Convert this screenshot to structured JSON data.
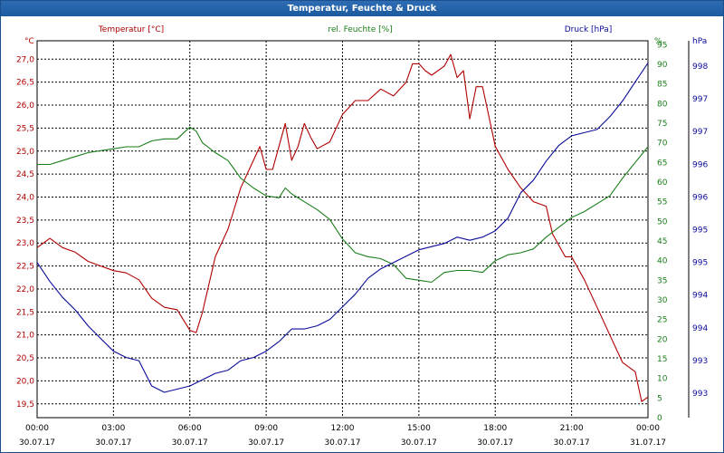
{
  "window": {
    "title": "Temperatur, Feuchte & Druck"
  },
  "chart_data": {
    "type": "line",
    "title": "Temperatur, Feuchte & Druck",
    "grid": true,
    "x": {
      "range": [
        "00:00 30.07.17",
        "00:00 31.07.17"
      ],
      "ticks": [
        {
          "time": "00:00",
          "date": "30.07.17"
        },
        {
          "time": "03:00",
          "date": "30.07.17"
        },
        {
          "time": "06:00",
          "date": "30.07.17"
        },
        {
          "time": "09:00",
          "date": "30.07.17"
        },
        {
          "time": "12:00",
          "date": "30.07.17"
        },
        {
          "time": "15:00",
          "date": "30.07.17"
        },
        {
          "time": "18:00",
          "date": "30.07.17"
        },
        {
          "time": "21:00",
          "date": "30.07.17"
        },
        {
          "time": "00:00",
          "date": "31.07.17"
        }
      ]
    },
    "axes": {
      "temperature": {
        "unit": "°C",
        "ylim": [
          19.2,
          27.4
        ],
        "ticks": [
          "27,0",
          "26,5",
          "26,0",
          "25,5",
          "25,0",
          "24,5",
          "24,0",
          "23,5",
          "23,0",
          "22,5",
          "22,0",
          "21,5",
          "21,0",
          "20,5",
          "20,0",
          "19,5"
        ]
      },
      "humidity": {
        "unit": "%",
        "ylim": [
          0,
          96
        ],
        "ticks": [
          "95",
          "90",
          "85",
          "80",
          "75",
          "70",
          "65",
          "60",
          "55",
          "50",
          "45",
          "40",
          "35",
          "30",
          "25",
          "20",
          "15",
          "10",
          "5",
          "0"
        ]
      },
      "pressure": {
        "unit": "hPa",
        "ylim": [
          992.6,
          998.55
        ],
        "ticks": [
          "998",
          "997",
          "997",
          "996",
          "996",
          "995",
          "995",
          "994",
          "994",
          "993",
          "993"
        ]
      }
    },
    "series": [
      {
        "name": "Temperatur [°C]",
        "axis": "temperature",
        "color": "#b00000",
        "points": [
          [
            "00:00",
            22.9
          ],
          [
            "00:30",
            23.1
          ],
          [
            "01:00",
            22.9
          ],
          [
            "01:30",
            22.8
          ],
          [
            "02:00",
            22.6
          ],
          [
            "02:30",
            22.5
          ],
          [
            "03:00",
            22.4
          ],
          [
            "03:30",
            22.35
          ],
          [
            "04:00",
            22.2
          ],
          [
            "04:30",
            21.8
          ],
          [
            "05:00",
            21.6
          ],
          [
            "05:30",
            21.55
          ],
          [
            "06:00",
            21.1
          ],
          [
            "06:15",
            21.05
          ],
          [
            "06:30",
            21.5
          ],
          [
            "07:00",
            22.7
          ],
          [
            "07:30",
            23.3
          ],
          [
            "08:00",
            24.2
          ],
          [
            "08:30",
            24.8
          ],
          [
            "08:45",
            25.1
          ],
          [
            "09:00",
            24.6
          ],
          [
            "09:15",
            24.6
          ],
          [
            "09:30",
            25.1
          ],
          [
            "09:45",
            25.6
          ],
          [
            "10:00",
            24.8
          ],
          [
            "10:15",
            25.1
          ],
          [
            "10:30",
            25.6
          ],
          [
            "10:45",
            25.3
          ],
          [
            "11:00",
            25.05
          ],
          [
            "11:30",
            25.2
          ],
          [
            "12:00",
            25.8
          ],
          [
            "12:30",
            26.1
          ],
          [
            "13:00",
            26.1
          ],
          [
            "13:30",
            26.35
          ],
          [
            "14:00",
            26.2
          ],
          [
            "14:30",
            26.5
          ],
          [
            "14:45",
            26.9
          ],
          [
            "15:00",
            26.9
          ],
          [
            "15:15",
            26.75
          ],
          [
            "15:30",
            26.65
          ],
          [
            "16:00",
            26.85
          ],
          [
            "16:15",
            27.1
          ],
          [
            "16:30",
            26.6
          ],
          [
            "16:45",
            26.75
          ],
          [
            "17:00",
            25.7
          ],
          [
            "17:15",
            26.4
          ],
          [
            "17:30",
            26.4
          ],
          [
            "18:00",
            25.1
          ],
          [
            "18:30",
            24.6
          ],
          [
            "19:00",
            24.2
          ],
          [
            "19:30",
            23.9
          ],
          [
            "20:00",
            23.8
          ],
          [
            "20:15",
            23.2
          ],
          [
            "20:45",
            22.7
          ],
          [
            "21:00",
            22.7
          ],
          [
            "21:30",
            22.2
          ],
          [
            "22:00",
            21.6
          ],
          [
            "22:30",
            21.0
          ],
          [
            "23:00",
            20.4
          ],
          [
            "23:30",
            20.2
          ],
          [
            "23:45",
            19.55
          ],
          [
            "24:00",
            19.65
          ]
        ]
      },
      {
        "name": "rel. Feuchte [%]",
        "axis": "humidity",
        "color": "#1a7d1a",
        "points": [
          [
            "00:00",
            64.5
          ],
          [
            "00:30",
            64.5
          ],
          [
            "01:00",
            65.5
          ],
          [
            "01:30",
            66.5
          ],
          [
            "02:00",
            67.5
          ],
          [
            "02:30",
            68
          ],
          [
            "03:00",
            68.5
          ],
          [
            "03:30",
            69
          ],
          [
            "04:00",
            69
          ],
          [
            "04:30",
            70.5
          ],
          [
            "05:00",
            71
          ],
          [
            "05:30",
            71
          ],
          [
            "06:00",
            74
          ],
          [
            "06:15",
            73
          ],
          [
            "06:30",
            70
          ],
          [
            "07:00",
            67.5
          ],
          [
            "07:30",
            65.5
          ],
          [
            "08:00",
            61
          ],
          [
            "08:30",
            58.5
          ],
          [
            "09:00",
            56.5
          ],
          [
            "09:30",
            56
          ],
          [
            "09:45",
            58.5
          ],
          [
            "10:00",
            57
          ],
          [
            "10:30",
            55
          ],
          [
            "11:00",
            53
          ],
          [
            "11:30",
            50.5
          ],
          [
            "12:00",
            45.5
          ],
          [
            "12:30",
            42
          ],
          [
            "13:00",
            41
          ],
          [
            "13:30",
            40.5
          ],
          [
            "14:00",
            39
          ],
          [
            "14:30",
            35.5
          ],
          [
            "15:00",
            35
          ],
          [
            "15:30",
            34.5
          ],
          [
            "16:00",
            37
          ],
          [
            "16:30",
            37.5
          ],
          [
            "17:00",
            37.5
          ],
          [
            "17:30",
            37
          ],
          [
            "18:00",
            40
          ],
          [
            "18:30",
            41.5
          ],
          [
            "19:00",
            42
          ],
          [
            "19:30",
            43
          ],
          [
            "20:00",
            46
          ],
          [
            "20:30",
            48.5
          ],
          [
            "21:00",
            51
          ],
          [
            "21:30",
            52.5
          ],
          [
            "22:00",
            54.5
          ],
          [
            "22:30",
            56.5
          ],
          [
            "23:00",
            61
          ],
          [
            "23:30",
            65
          ],
          [
            "24:00",
            69
          ]
        ]
      },
      {
        "name": "Druck [hPa]",
        "axis": "pressure",
        "color": "#0b0b9b",
        "points": [
          [
            "00:00",
            995.05
          ],
          [
            "00:30",
            994.75
          ],
          [
            "01:00",
            994.5
          ],
          [
            "01:30",
            994.3
          ],
          [
            "02:00",
            994.05
          ],
          [
            "02:30",
            993.85
          ],
          [
            "03:00",
            993.65
          ],
          [
            "03:30",
            993.55
          ],
          [
            "04:00",
            993.5
          ],
          [
            "04:30",
            993.1
          ],
          [
            "05:00",
            993.0
          ],
          [
            "05:30",
            993.05
          ],
          [
            "06:00",
            993.1
          ],
          [
            "06:30",
            993.2
          ],
          [
            "07:00",
            993.3
          ],
          [
            "07:30",
            993.35
          ],
          [
            "08:00",
            993.5
          ],
          [
            "08:30",
            993.55
          ],
          [
            "09:00",
            993.65
          ],
          [
            "09:30",
            993.8
          ],
          [
            "10:00",
            994.0
          ],
          [
            "10:30",
            994.0
          ],
          [
            "11:00",
            994.05
          ],
          [
            "11:30",
            994.15
          ],
          [
            "12:00",
            994.35
          ],
          [
            "12:30",
            994.55
          ],
          [
            "13:00",
            994.8
          ],
          [
            "13:30",
            994.95
          ],
          [
            "14:00",
            995.05
          ],
          [
            "14:30",
            995.15
          ],
          [
            "15:00",
            995.25
          ],
          [
            "15:30",
            995.3
          ],
          [
            "16:00",
            995.35
          ],
          [
            "16:30",
            995.45
          ],
          [
            "17:00",
            995.4
          ],
          [
            "17:30",
            995.45
          ],
          [
            "18:00",
            995.55
          ],
          [
            "18:30",
            995.75
          ],
          [
            "19:00",
            996.15
          ],
          [
            "19:30",
            996.35
          ],
          [
            "20:00",
            996.65
          ],
          [
            "20:30",
            996.9
          ],
          [
            "21:00",
            997.05
          ],
          [
            "21:30",
            997.1
          ],
          [
            "22:00",
            997.15
          ],
          [
            "22:30",
            997.35
          ],
          [
            "23:00",
            997.6
          ],
          [
            "23:30",
            997.9
          ],
          [
            "24:00",
            998.2
          ]
        ]
      }
    ]
  }
}
